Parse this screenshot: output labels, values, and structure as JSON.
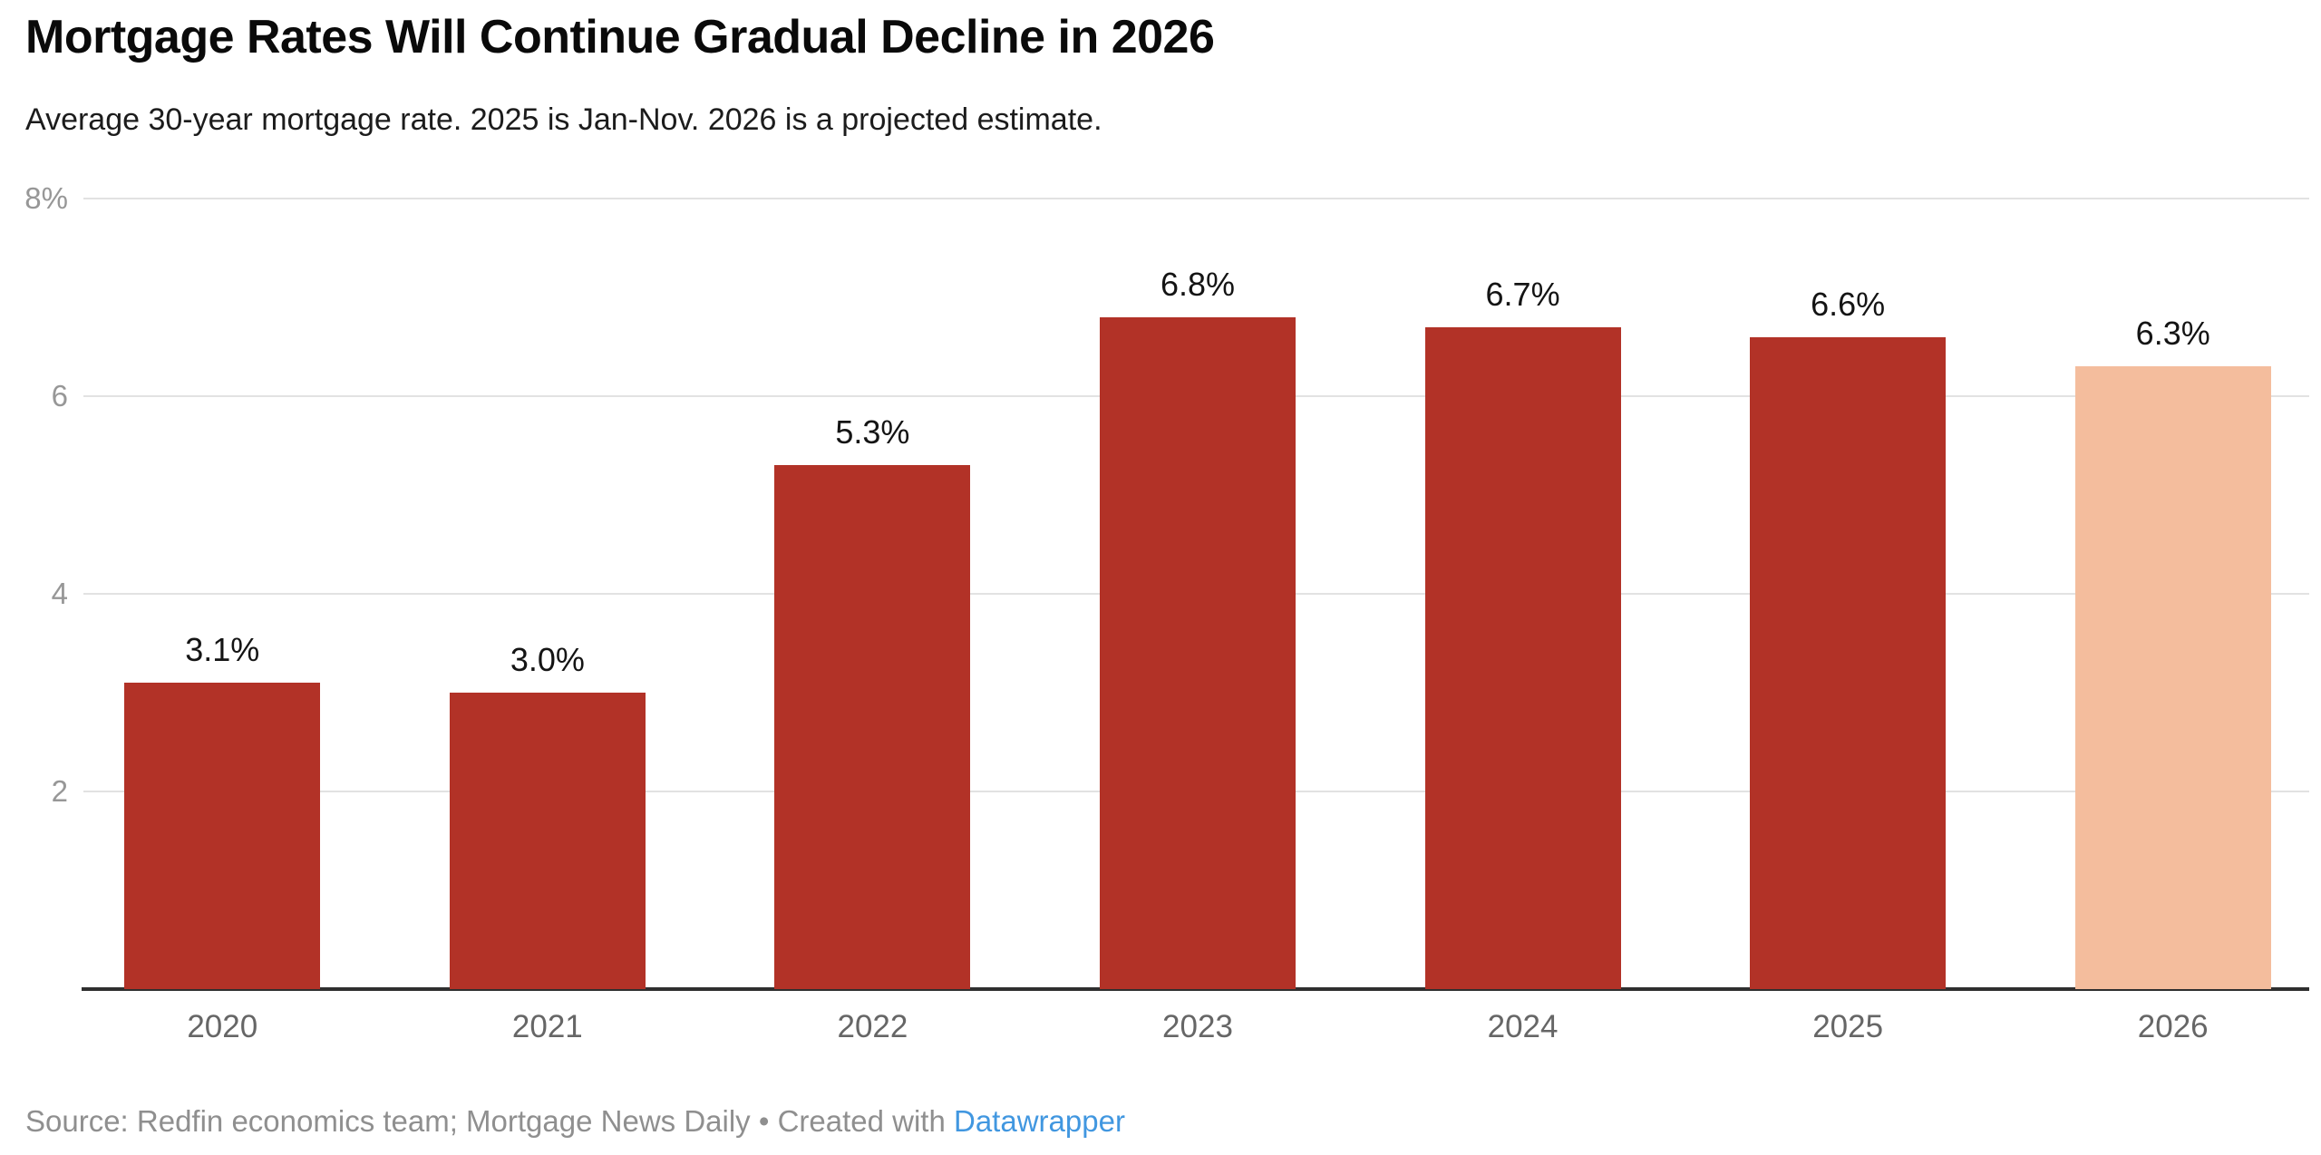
{
  "chart_data": {
    "type": "bar",
    "title": "Mortgage Rates Will Continue Gradual Decline in 2026",
    "subtitle": "Average 30-year mortgage rate. 2025 is Jan-Nov. 2026 is a projected estimate.",
    "categories": [
      "2020",
      "2021",
      "2022",
      "2023",
      "2024",
      "2025",
      "2026"
    ],
    "values": [
      3.1,
      3.0,
      5.3,
      6.8,
      6.7,
      6.6,
      6.3
    ],
    "value_labels": [
      "3.1%",
      "3.0%",
      "5.3%",
      "6.8%",
      "6.7%",
      "6.6%",
      "6.3%"
    ],
    "ylabel": "",
    "xlabel": "",
    "ylim": [
      0,
      8
    ],
    "yticks": [
      {
        "value": 8,
        "label": "8%"
      },
      {
        "value": 6,
        "label": "6"
      },
      {
        "value": 4,
        "label": "4"
      },
      {
        "value": 2,
        "label": "2"
      }
    ],
    "grid": true,
    "legend_position": "none",
    "projected_index": 6,
    "colors": {
      "bar": "#B23227",
      "projected_bar": "#F4BD9D",
      "gridline": "#E2E2E2",
      "baseline": "#2F2F2F",
      "ytick_label": "#979797",
      "xtick_label": "#666666",
      "value_label": "#141414"
    }
  },
  "footer": {
    "source": "Source: Redfin economics team; Mortgage News Daily",
    "separator": " • ",
    "created_with": "Created with ",
    "link_label": "Datawrapper",
    "link_color": "#4197E0"
  }
}
